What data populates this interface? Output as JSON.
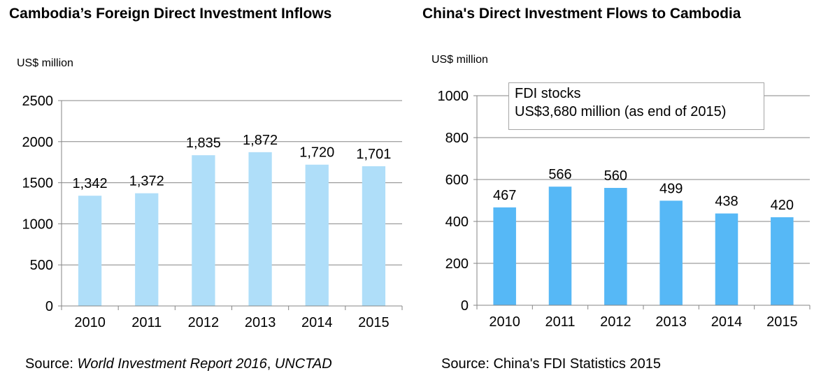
{
  "chart_data": [
    {
      "type": "bar",
      "title": "Cambodia’s Foreign Direct Investment Inflows",
      "unit_label": "US$ million",
      "categories": [
        "2010",
        "2011",
        "2012",
        "2013",
        "2014",
        "2015"
      ],
      "values": [
        1342,
        1372,
        1835,
        1872,
        1720,
        1701
      ],
      "value_labels": [
        "1,342",
        "1,372",
        "1,835",
        "1,872",
        "1,720",
        "1,701"
      ],
      "ylim": [
        0,
        2500
      ],
      "yticks": [
        0,
        500,
        1000,
        1500,
        2000,
        2500
      ],
      "grid": true,
      "bar_color": "#afdef9",
      "source_prefix": "Source: ",
      "source_italic_1": "World Investment Report 2016",
      "source_mid": ", ",
      "source_italic_2": "UNCTAD"
    },
    {
      "type": "bar",
      "title": "China's Direct Investment Flows to Cambodia",
      "unit_label": "US$ million",
      "categories": [
        "2010",
        "2011",
        "2012",
        "2013",
        "2014",
        "2015"
      ],
      "values": [
        467,
        566,
        560,
        499,
        438,
        420
      ],
      "value_labels": [
        "467",
        "566",
        "560",
        "499",
        "438",
        "420"
      ],
      "ylim": [
        0,
        1000
      ],
      "yticks": [
        0,
        200,
        400,
        600,
        800,
        1000
      ],
      "grid": true,
      "bar_color": "#56b8f6",
      "annotation_line1": "FDI stocks",
      "annotation_line2": "US$3,680 million  (as end of 2015)",
      "source": "Source: China's FDI Statistics 2015"
    }
  ]
}
